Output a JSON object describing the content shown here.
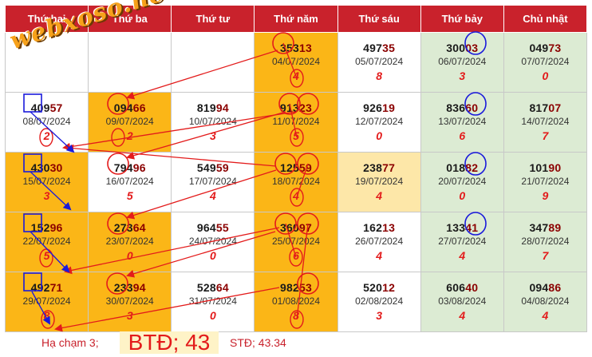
{
  "header": {
    "days": [
      "Thứ hai",
      "Thứ ba",
      "Thứ tư",
      "Thứ năm",
      "Thứ sáu",
      "Thứ bảy",
      "Chủ nhật"
    ]
  },
  "logo": {
    "text": "webxoso.net"
  },
  "rows": [
    [
      {
        "head": "",
        "tail": "",
        "date": "",
        "digit": "",
        "bg": "white"
      },
      {
        "head": "",
        "tail": "",
        "date": "",
        "digit": "",
        "bg": "white"
      },
      {
        "head": "",
        "tail": "",
        "date": "",
        "digit": "",
        "bg": "white"
      },
      {
        "head": "353",
        "tail": "13",
        "date": "04/07/2024",
        "digit": "4",
        "bg": "orange"
      },
      {
        "head": "497",
        "tail": "35",
        "date": "05/07/2024",
        "digit": "8",
        "bg": "white"
      },
      {
        "head": "300",
        "tail": "03",
        "date": "06/07/2024",
        "digit": "3",
        "bg": "green"
      },
      {
        "head": "049",
        "tail": "73",
        "date": "07/07/2024",
        "digit": "0",
        "bg": "green"
      }
    ],
    [
      {
        "head": "409",
        "tail": "57",
        "date": "08/07/2024",
        "digit": "2",
        "bg": "white"
      },
      {
        "head": "094",
        "tail": "66",
        "date": "09/07/2024",
        "digit": "2",
        "bg": "orange"
      },
      {
        "head": "819",
        "tail": "94",
        "date": "10/07/2024",
        "digit": "3",
        "bg": "white"
      },
      {
        "head": "913",
        "tail": "23",
        "date": "11/07/2024",
        "digit": "5",
        "bg": "orange"
      },
      {
        "head": "926",
        "tail": "19",
        "date": "12/07/2024",
        "digit": "0",
        "bg": "white"
      },
      {
        "head": "836",
        "tail": "60",
        "date": "13/07/2024",
        "digit": "6",
        "bg": "green"
      },
      {
        "head": "817",
        "tail": "07",
        "date": "14/07/2024",
        "digit": "7",
        "bg": "green"
      }
    ],
    [
      {
        "head": "430",
        "tail": "30",
        "date": "15/07/2024",
        "digit": "3",
        "bg": "orange"
      },
      {
        "head": "794",
        "tail": "96",
        "date": "16/07/2024",
        "digit": "5",
        "bg": "white"
      },
      {
        "head": "549",
        "tail": "59",
        "date": "17/07/2024",
        "digit": "4",
        "bg": "white"
      },
      {
        "head": "125",
        "tail": "59",
        "date": "18/07/2024",
        "digit": "4",
        "bg": "orange"
      },
      {
        "head": "238",
        "tail": "77",
        "date": "19/07/2024",
        "digit": "4",
        "bg": "yellow"
      },
      {
        "head": "018",
        "tail": "82",
        "date": "20/07/2024",
        "digit": "0",
        "bg": "green"
      },
      {
        "head": "101",
        "tail": "90",
        "date": "21/07/2024",
        "digit": "9",
        "bg": "green"
      }
    ],
    [
      {
        "head": "152",
        "tail": "96",
        "date": "22/07/2024",
        "digit": "5",
        "bg": "orange"
      },
      {
        "head": "273",
        "tail": "64",
        "date": "23/07/2024",
        "digit": "0",
        "bg": "orange"
      },
      {
        "head": "964",
        "tail": "55",
        "date": "24/07/2024",
        "digit": "0",
        "bg": "white"
      },
      {
        "head": "360",
        "tail": "97",
        "date": "25/07/2024",
        "digit": "6",
        "bg": "orange"
      },
      {
        "head": "162",
        "tail": "13",
        "date": "26/07/2024",
        "digit": "4",
        "bg": "white"
      },
      {
        "head": "133",
        "tail": "41",
        "date": "27/07/2024",
        "digit": "4",
        "bg": "green"
      },
      {
        "head": "347",
        "tail": "89",
        "date": "28/07/2024",
        "digit": "7",
        "bg": "green"
      }
    ],
    [
      {
        "head": "492",
        "tail": "71",
        "date": "29/07/2024",
        "digit": "8",
        "bg": "orange"
      },
      {
        "head": "233",
        "tail": "94",
        "date": "30/07/2024",
        "digit": "3",
        "bg": "orange"
      },
      {
        "head": "528",
        "tail": "64",
        "date": "31/07/2024",
        "digit": "0",
        "bg": "white"
      },
      {
        "head": "982",
        "tail": "53",
        "date": "01/08/2024",
        "digit": "8",
        "bg": "orange"
      },
      {
        "head": "520",
        "tail": "12",
        "date": "02/08/2024",
        "digit": "3",
        "bg": "white"
      },
      {
        "head": "606",
        "tail": "40",
        "date": "03/08/2024",
        "digit": "4",
        "bg": "green"
      },
      {
        "head": "094",
        "tail": "86",
        "date": "04/08/2024",
        "digit": "4",
        "bg": "green"
      }
    ]
  ],
  "footer": {
    "hit": "Hạ chạm 3;",
    "btd": "BTĐ; 43",
    "std": "STĐ; 43.34"
  },
  "colors": {
    "header": "#c9222c",
    "orange": "#fbb617",
    "green": "#dcebd3",
    "yellow": "#fde7a8",
    "accent_red": "#e31b1b",
    "accent_blue": "#1a1adb"
  }
}
